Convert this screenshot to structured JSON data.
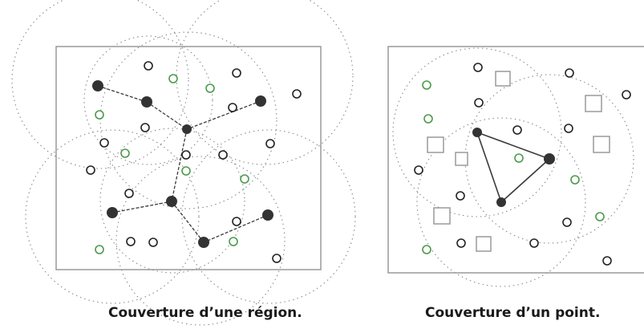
{
  "figures": {
    "region": {
      "caption": "Couverture d’une région."
    },
    "point": {
      "caption": "Couverture d’un point."
    }
  },
  "colors": {
    "frame": "#9a9a9a",
    "range_circle": "#8a8a8a",
    "active_link": "#3a3a3a",
    "active_node": "#333333",
    "sensor_green": "#4a9a4a",
    "sensor_black": "#222222",
    "target_square": "#9a9a9a"
  },
  "icons": {
    "active_node": "filled-dark-circle-icon",
    "sleeping_sensor": "open-circle-icon",
    "target_point": "open-square-icon"
  }
}
